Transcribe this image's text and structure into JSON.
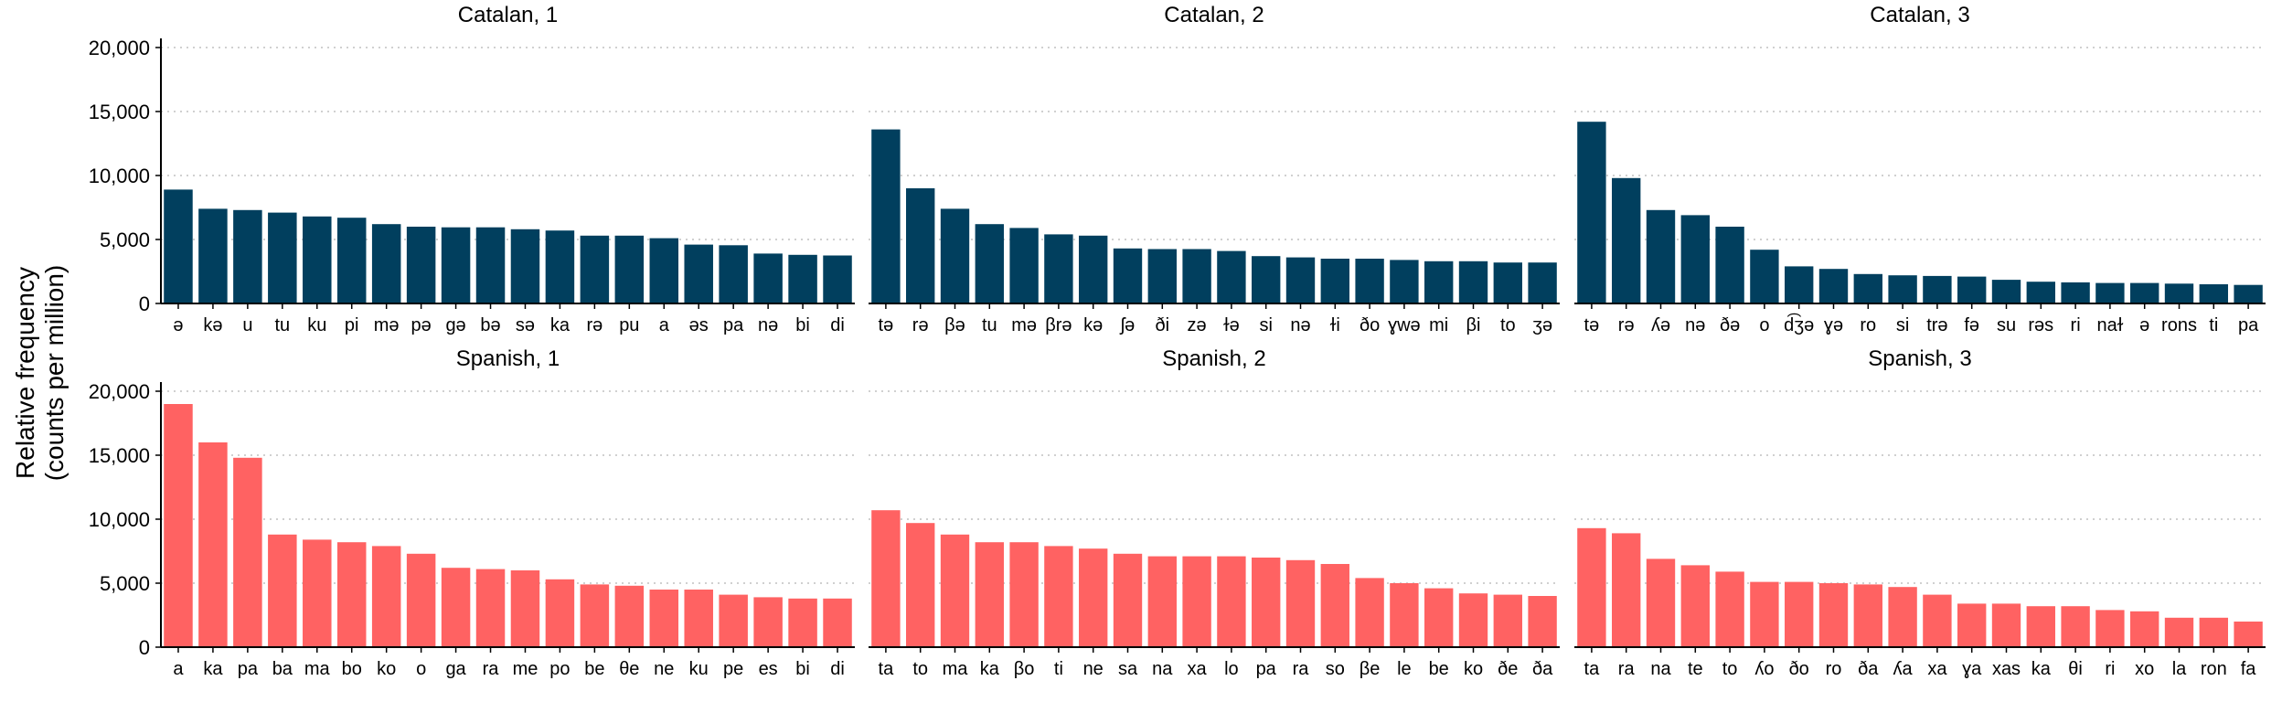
{
  "figure": {
    "ylabel_line1": "Relative frequency",
    "ylabel_line2": "(counts per million)"
  },
  "colors": {
    "catalan": "#013F5E",
    "spanish": "#FF6262"
  },
  "chart_data": [
    {
      "type": "bar",
      "title": "Catalan, 1",
      "language": "catalan",
      "ylim": [
        0,
        20000
      ],
      "yticks": [
        0,
        5000,
        10000,
        15000,
        20000
      ],
      "ytick_labels": [
        "0",
        "5,000",
        "10,000",
        "15,000",
        "20,000"
      ],
      "categories": [
        "ə",
        "kə",
        "u",
        "tu",
        "ku",
        "pi",
        "mə",
        "pə",
        "gə",
        "bə",
        "sə",
        "ka",
        "rə",
        "pu",
        "a",
        "əs",
        "pa",
        "nə",
        "bi",
        "di"
      ],
      "values": [
        8900,
        7400,
        7300,
        7100,
        6800,
        6700,
        6200,
        6000,
        5950,
        5950,
        5800,
        5700,
        5300,
        5300,
        5100,
        4600,
        4550,
        3900,
        3800,
        3750
      ]
    },
    {
      "type": "bar",
      "title": "Catalan, 2",
      "language": "catalan",
      "ylim": [
        0,
        20000
      ],
      "yticks": [
        0,
        5000,
        10000,
        15000,
        20000
      ],
      "ytick_labels": [
        "0",
        "5,000",
        "10,000",
        "15,000",
        "20,000"
      ],
      "categories": [
        "tə",
        "rə",
        "βə",
        "tu",
        "mə",
        "βrə",
        "kə",
        "ʃə",
        "ði",
        "zə",
        "ɫə",
        "si",
        "nə",
        "ɫi",
        "ðo",
        "ɣwə",
        "mi",
        "βi",
        "to",
        "ʒə"
      ],
      "values": [
        13600,
        9000,
        7400,
        6200,
        5900,
        5400,
        5300,
        4300,
        4250,
        4250,
        4100,
        3700,
        3600,
        3500,
        3500,
        3400,
        3300,
        3300,
        3200,
        3200
      ]
    },
    {
      "type": "bar",
      "title": "Catalan, 3",
      "language": "catalan",
      "ylim": [
        0,
        20000
      ],
      "yticks": [
        0,
        5000,
        10000,
        15000,
        20000
      ],
      "ytick_labels": [
        "0",
        "5,000",
        "10,000",
        "15,000",
        "20,000"
      ],
      "categories": [
        "tə",
        "rə",
        "ʎə",
        "nə",
        "ðə",
        "o",
        "d͡ʒə",
        "ɣə",
        "ro",
        "si",
        "trə",
        "fə",
        "su",
        "rəs",
        "ri",
        "naɫ",
        "ə",
        "rons",
        "ti",
        "pa"
      ],
      "values": [
        14200,
        9800,
        7300,
        6900,
        6000,
        4200,
        2900,
        2700,
        2300,
        2200,
        2150,
        2100,
        1850,
        1700,
        1650,
        1600,
        1600,
        1550,
        1500,
        1450
      ]
    },
    {
      "type": "bar",
      "title": "Spanish, 1",
      "language": "spanish",
      "ylim": [
        0,
        20000
      ],
      "yticks": [
        0,
        5000,
        10000,
        15000,
        20000
      ],
      "ytick_labels": [
        "0",
        "5,000",
        "10,000",
        "15,000",
        "20,000"
      ],
      "categories": [
        "a",
        "ka",
        "pa",
        "ba",
        "ma",
        "bo",
        "ko",
        "o",
        "ga",
        "ra",
        "me",
        "po",
        "be",
        "θe",
        "ne",
        "ku",
        "pe",
        "es",
        "bi",
        "di"
      ],
      "values": [
        19000,
        16000,
        14800,
        8800,
        8400,
        8200,
        7900,
        7300,
        6200,
        6100,
        6000,
        5300,
        4900,
        4800,
        4500,
        4500,
        4100,
        3900,
        3800,
        3800
      ]
    },
    {
      "type": "bar",
      "title": "Spanish, 2",
      "language": "spanish",
      "ylim": [
        0,
        20000
      ],
      "yticks": [
        0,
        5000,
        10000,
        15000,
        20000
      ],
      "ytick_labels": [
        "0",
        "5,000",
        "10,000",
        "15,000",
        "20,000"
      ],
      "categories": [
        "ta",
        "to",
        "ma",
        "ka",
        "βo",
        "ti",
        "ne",
        "sa",
        "na",
        "xa",
        "lo",
        "pa",
        "ra",
        "so",
        "βe",
        "le",
        "be",
        "ko",
        "ðe",
        "ða"
      ],
      "values": [
        10700,
        9700,
        8800,
        8200,
        8200,
        7900,
        7700,
        7300,
        7100,
        7100,
        7100,
        7000,
        6800,
        6500,
        5400,
        5000,
        4600,
        4200,
        4100,
        4000
      ]
    },
    {
      "type": "bar",
      "title": "Spanish, 3",
      "language": "spanish",
      "ylim": [
        0,
        20000
      ],
      "yticks": [
        0,
        5000,
        10000,
        15000,
        20000
      ],
      "ytick_labels": [
        "0",
        "5,000",
        "10,000",
        "15,000",
        "20,000"
      ],
      "categories": [
        "ta",
        "ra",
        "na",
        "te",
        "to",
        "ʎo",
        "ðo",
        "ro",
        "ða",
        "ʎa",
        "xa",
        "ɣa",
        "xas",
        "ka",
        "θi",
        "ri",
        "xo",
        "la",
        "ron",
        "fa"
      ],
      "values": [
        9300,
        8900,
        6900,
        6400,
        5900,
        5100,
        5100,
        5000,
        4900,
        4700,
        4100,
        3400,
        3400,
        3200,
        3200,
        2900,
        2800,
        2300,
        2300,
        2000
      ]
    }
  ]
}
